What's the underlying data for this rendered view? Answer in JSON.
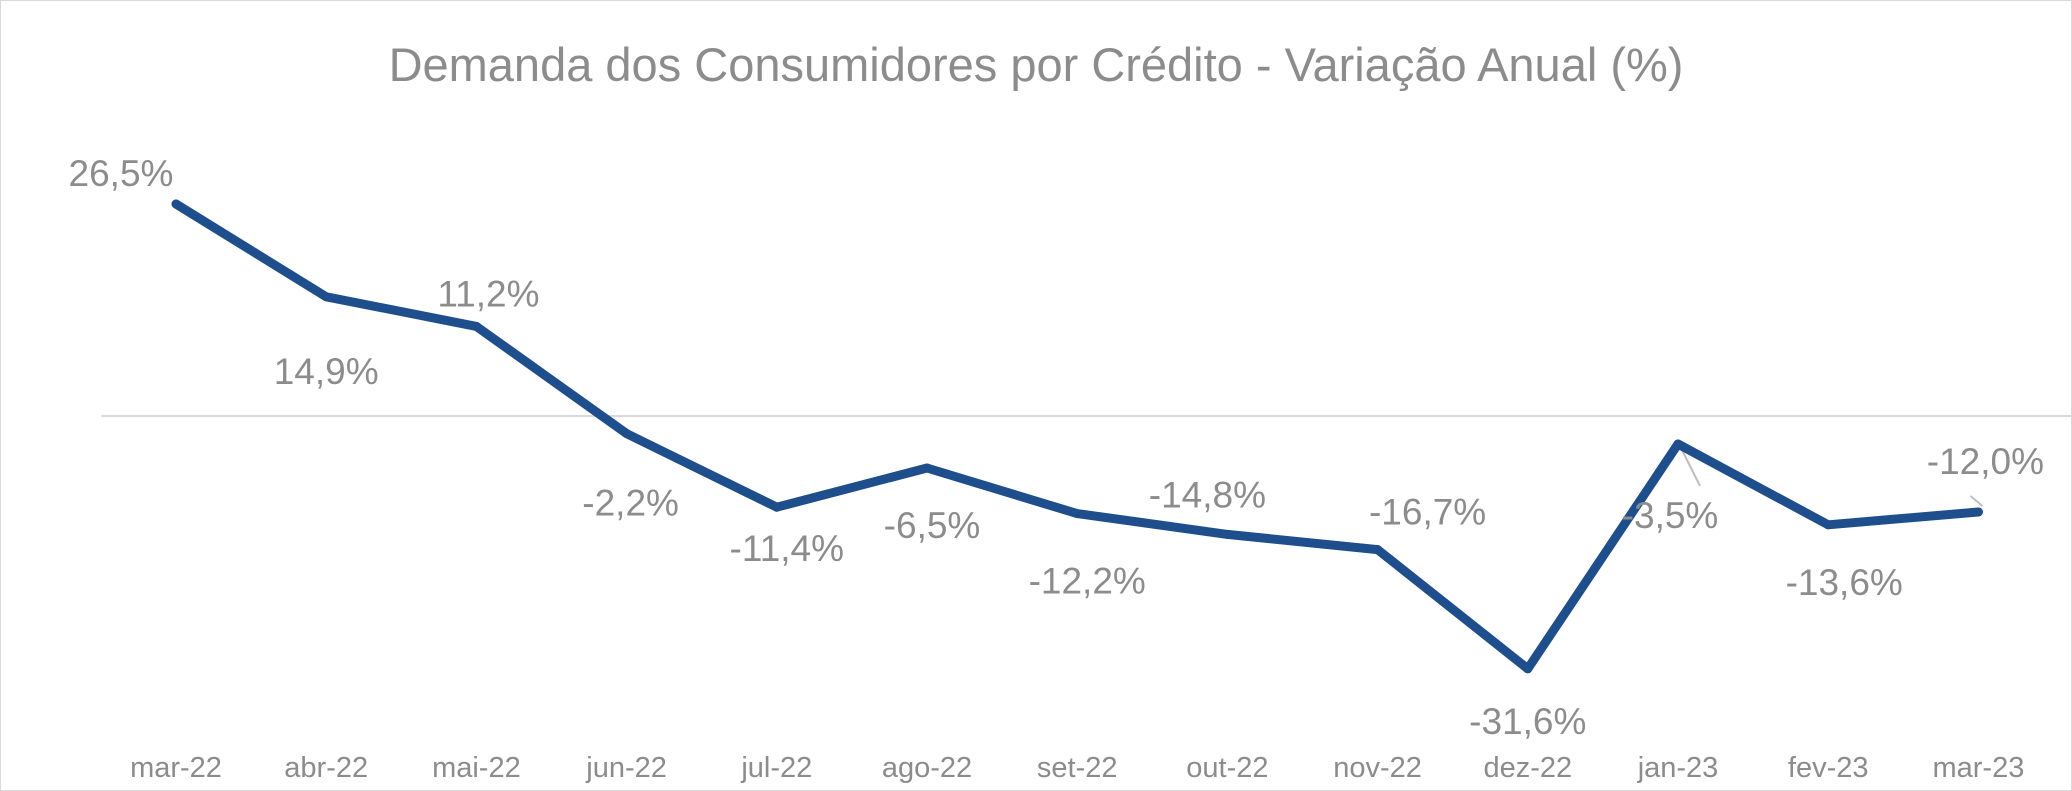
{
  "chart_data": {
    "type": "line",
    "title": "Demanda dos Consumidores por Crédito - Variação Anual (%)",
    "xlabel": "",
    "ylabel": "",
    "ylim": [
      -40,
      40
    ],
    "grid": false,
    "legend": "none",
    "zero_line": true,
    "colors": {
      "line": "#1f4e8c",
      "text": "#8c8c8c",
      "axis": "#d9d9d9",
      "leader": "#bfbfbf"
    },
    "categories": [
      "mar-22",
      "abr-22",
      "mai-22",
      "jun-22",
      "jul-22",
      "ago-22",
      "set-22",
      "out-22",
      "nov-22",
      "dez-22",
      "jan-23",
      "fev-23",
      "mar-23"
    ],
    "series": [
      {
        "values": [
          26.5,
          14.9,
          11.2,
          -2.2,
          -11.4,
          -6.5,
          -12.2,
          -14.8,
          -16.7,
          -31.6,
          -3.5,
          -13.6,
          -12.0
        ],
        "labels": [
          "26,5%",
          "14,9%",
          "11,2%",
          "-2,2%",
          "-11,4%",
          "-6,5%",
          "-12,2%",
          "-14,8%",
          "-16,7%",
          "-31,6%",
          "-3,5%",
          "-13,6%",
          "-12,0%"
        ]
      }
    ]
  }
}
